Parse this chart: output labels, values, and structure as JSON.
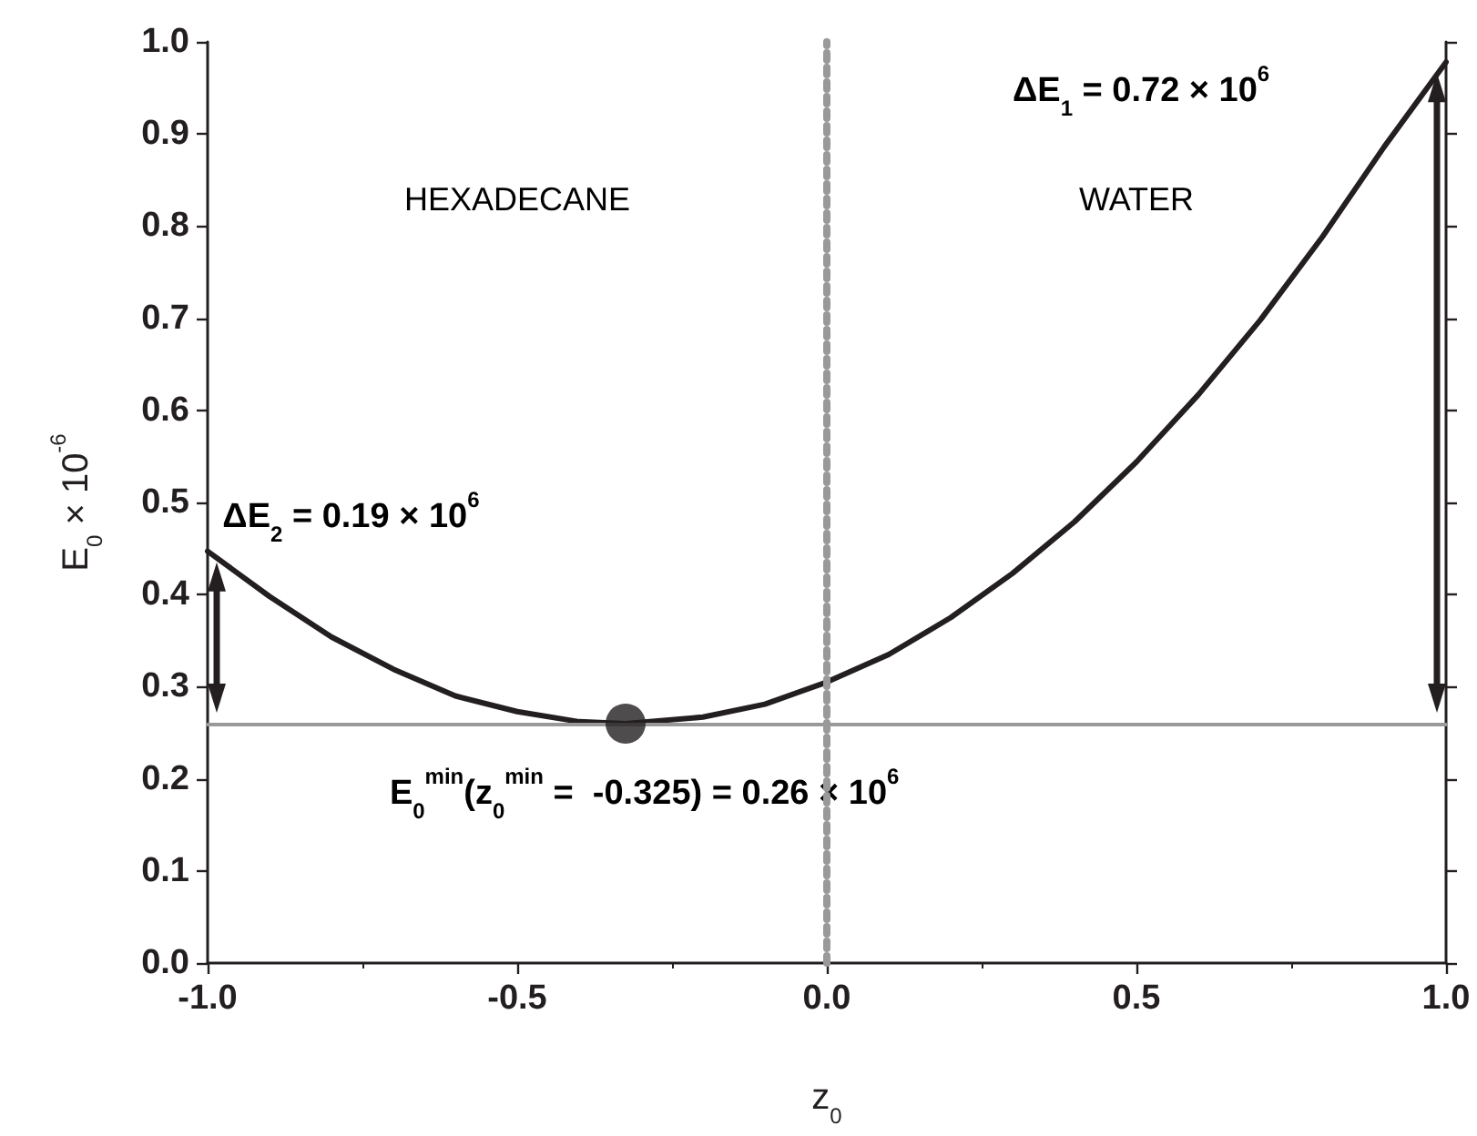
{
  "chart_data": {
    "type": "line",
    "xlabel": "z$_{0}$",
    "ylabel": "E$_{0}$ × 10$^{-6}$",
    "x": [
      -1.0,
      -0.9,
      -0.8,
      -0.7,
      -0.6,
      -0.5,
      -0.4,
      -0.325,
      -0.2,
      -0.1,
      0.0,
      0.1,
      0.2,
      0.3,
      0.4,
      0.5,
      0.6,
      0.7,
      0.8,
      0.9,
      1.0
    ],
    "series": [
      {
        "color": "#231f20",
        "values": [
          0.447,
          0.398,
          0.354,
          0.319,
          0.29,
          0.273,
          0.262,
          0.26,
          0.267,
          0.281,
          0.305,
          0.335,
          0.375,
          0.423,
          0.479,
          0.544,
          0.617,
          0.698,
          0.788,
          0.886,
          0.978
        ]
      },
      {
        "type": "scatter",
        "color": "#231f20",
        "x": [
          -0.325
        ],
        "values": [
          0.26
        ]
      }
    ],
    "xlim": [
      -1.0,
      1.0
    ],
    "xticks": [
      {
        "value": -1.0,
        "label": "-1.0"
      },
      -0.5,
      {
        "value": 0.0,
        "label": "0.0"
      },
      0.5,
      {
        "value": 1.0,
        "label": "1.0"
      }
    ],
    "ylim": [
      0.0,
      1.0
    ],
    "yticks": [
      {
        "value": 0.0,
        "label": "0.0"
      },
      0.1,
      0.2,
      0.3,
      0.4,
      0.5,
      0.6,
      0.7,
      0.8,
      0.9,
      {
        "value": 1.0,
        "label": "1.0"
      }
    ],
    "ref_lines": [
      {
        "axis": "y",
        "value": 0.26,
        "color": "#999999",
        "line_style": "solid"
      },
      {
        "axis": "x",
        "value": 0.0,
        "color": "#999999",
        "line_style": "dotted"
      }
    ],
    "annotations": [
      "HEXADECANE",
      "WATER",
      "ΔE$_{1}$ = 0.72 × 10$^{6}$",
      "ΔE$_{2}$ = 0.19 × 10$^{6}$",
      "E$_{0}$$^{min}$(z$_{0}$$^{min}$ =  -0.325) = 0.26 × 10$^{6}$"
    ],
    "grid": false,
    "line_style": "solid"
  }
}
